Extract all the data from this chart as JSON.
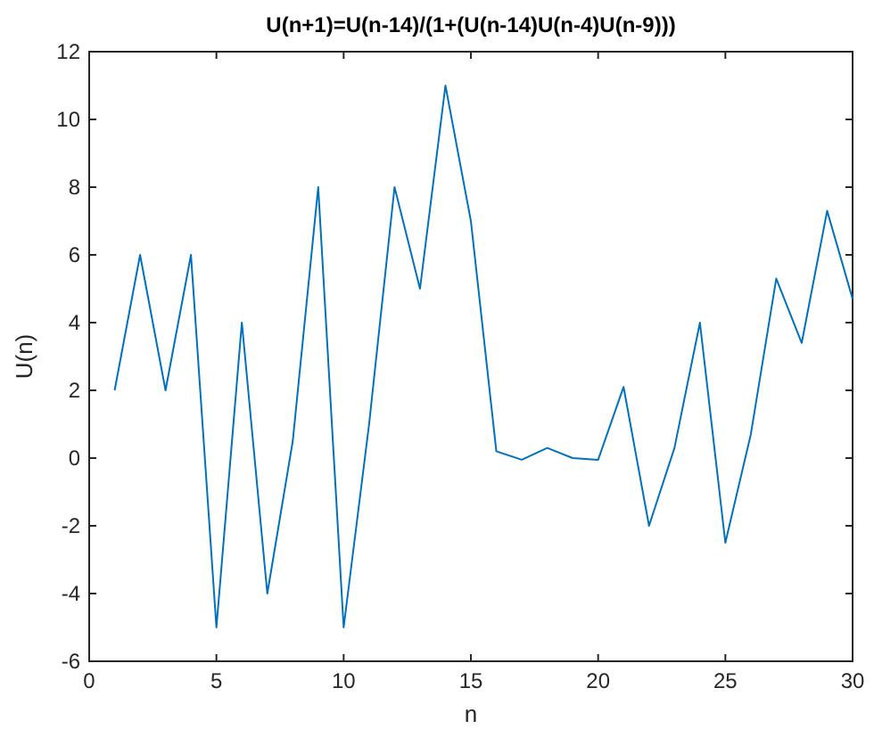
{
  "chart_data": {
    "type": "line",
    "title": "U(n+1)=U(n-14)/(1+(U(n-14)U(n-4)U(n-9)))",
    "xlabel": "n",
    "ylabel": "U(n)",
    "x": [
      1,
      2,
      3,
      4,
      5,
      6,
      7,
      8,
      9,
      10,
      11,
      12,
      13,
      14,
      15,
      16,
      17,
      18,
      19,
      20,
      21,
      22,
      23,
      24,
      25,
      26,
      27,
      28,
      29,
      30
    ],
    "series": [
      {
        "color": "#0072bd",
        "values": [
          2,
          6,
          2,
          6,
          -5,
          4,
          -4,
          0.5,
          8,
          -5,
          1,
          8,
          5,
          11,
          7,
          0.2,
          -0.05,
          0.3,
          0,
          -0.05,
          2.1,
          -2,
          0.3,
          4,
          -2.5,
          0.7,
          5.3,
          3.4,
          7.3,
          4.7
        ]
      }
    ],
    "xlim": [
      0,
      30
    ],
    "xticks": [
      0,
      5,
      10,
      15,
      20,
      25,
      30
    ],
    "ylim": [
      -6,
      12
    ],
    "yticks": [
      -6,
      -4,
      -2,
      0,
      2,
      4,
      6,
      8,
      10,
      12
    ],
    "grid": false,
    "marker": "none",
    "line_style": "solid"
  }
}
